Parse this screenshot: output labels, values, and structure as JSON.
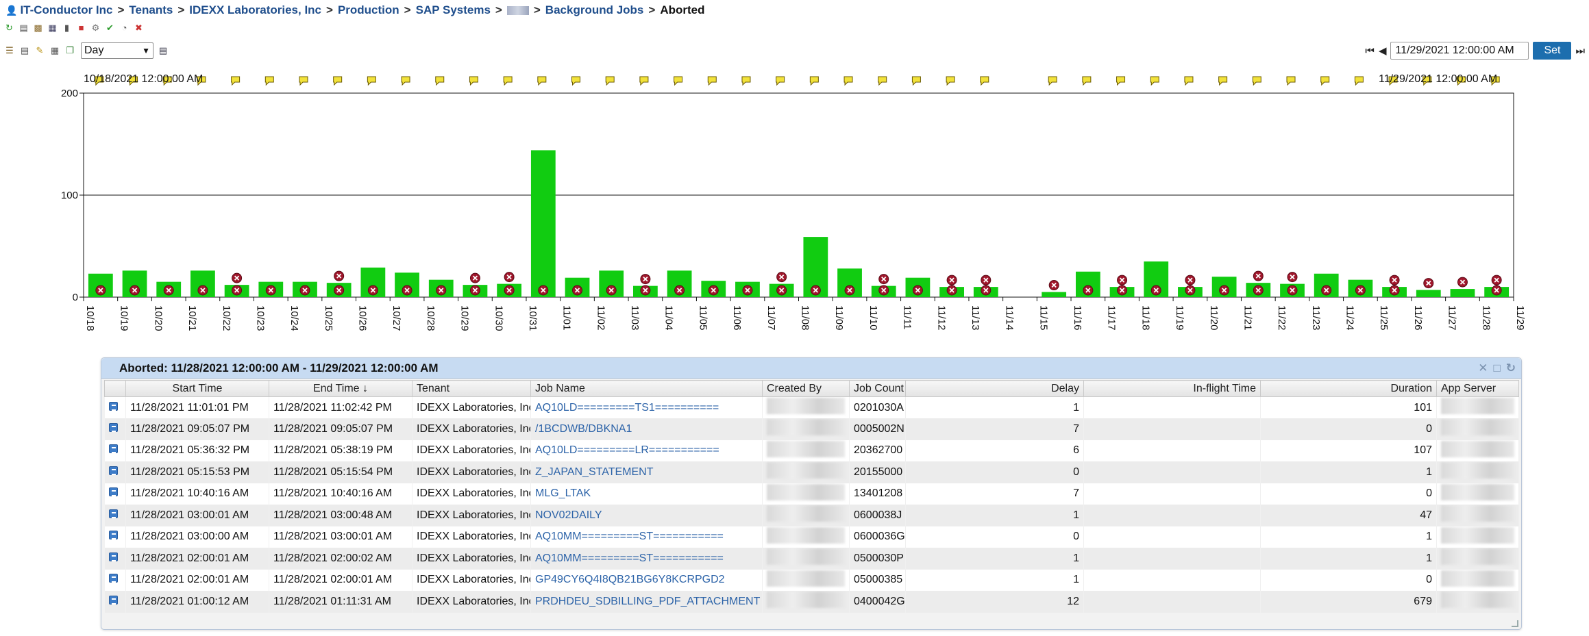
{
  "breadcrumb": {
    "items": [
      "IT-Conductor Inc",
      "Tenants",
      "IDEXX Laboratories, Inc",
      "Production",
      "SAP Systems"
    ],
    "after_system": "Background Jobs",
    "current": "Aborted",
    "separator": ">"
  },
  "controls": {
    "period": "Day",
    "date_value": "11/29/2021 12:00:00 AM",
    "set_label": "Set",
    "range_start_label": "10/18/2021 12:00:00 AM",
    "range_end_label": "11/29/2021 12:00:00 AM"
  },
  "chart_data": {
    "type": "bar",
    "categories": [
      "10/18",
      "10/19",
      "10/20",
      "10/21",
      "10/22",
      "10/23",
      "10/24",
      "10/25",
      "10/26",
      "10/27",
      "10/28",
      "10/29",
      "10/30",
      "10/31",
      "11/01",
      "11/02",
      "11/03",
      "11/04",
      "11/05",
      "11/06",
      "11/07",
      "11/08",
      "11/09",
      "11/10",
      "11/11",
      "11/12",
      "11/13",
      "11/14",
      "11/15",
      "11/16",
      "11/17",
      "11/18",
      "11/19",
      "11/20",
      "11/21",
      "11/22",
      "11/23",
      "11/24",
      "11/25",
      "11/26",
      "11/27",
      "11/28"
    ],
    "x_end_tick": "11/29",
    "values": [
      23,
      26,
      15,
      26,
      12,
      15,
      15,
      14,
      29,
      24,
      17,
      12,
      13,
      144,
      19,
      26,
      11,
      26,
      16,
      15,
      13,
      59,
      28,
      11,
      19,
      10,
      10,
      0,
      5,
      25,
      10,
      35,
      10,
      20,
      14,
      13,
      23,
      17,
      10,
      7,
      8,
      10
    ],
    "ylim": [
      0,
      200
    ],
    "yticks": [
      0,
      100,
      200
    ],
    "color": "#11cc11",
    "annotation_markers": "yellow flag above every day except 11/14; red error icon on each bar"
  },
  "table": {
    "title": "Aborted: 11/28/2021 12:00:00 AM - 11/29/2021 12:00:00 AM",
    "columns": [
      "Start Time",
      "End Time ↓",
      "Tenant",
      "Job Name",
      "Created By",
      "Job Count",
      "Delay",
      "In-flight Time",
      "Duration",
      "App Server"
    ],
    "rows": [
      {
        "start": "11/28/2021 11:01:01 PM",
        "end": "11/28/2021 11:02:42 PM",
        "tenant": "IDEXX Laboratories, Inc",
        "job": "AQ10LD=========TS1==========",
        "count": "0201030A",
        "delay": "1",
        "inflight": "",
        "duration": "101"
      },
      {
        "start": "11/28/2021 09:05:07 PM",
        "end": "11/28/2021 09:05:07 PM",
        "tenant": "IDEXX Laboratories, Inc",
        "job": "/1BCDWB/DBKNA1",
        "count": "0005002N",
        "delay": "7",
        "inflight": "",
        "duration": "0"
      },
      {
        "start": "11/28/2021 05:36:32 PM",
        "end": "11/28/2021 05:38:19 PM",
        "tenant": "IDEXX Laboratories, Inc",
        "job": "AQ10LD=========LR===========",
        "count": "20362700",
        "delay": "6",
        "inflight": "",
        "duration": "107"
      },
      {
        "start": "11/28/2021 05:15:53 PM",
        "end": "11/28/2021 05:15:54 PM",
        "tenant": "IDEXX Laboratories, Inc",
        "job": "Z_JAPAN_STATEMENT",
        "count": "20155000",
        "delay": "0",
        "inflight": "",
        "duration": "1"
      },
      {
        "start": "11/28/2021 10:40:16 AM",
        "end": "11/28/2021 10:40:16 AM",
        "tenant": "IDEXX Laboratories, Inc",
        "job": "MLG_LTAK",
        "count": "13401208",
        "delay": "7",
        "inflight": "",
        "duration": "0"
      },
      {
        "start": "11/28/2021 03:00:01 AM",
        "end": "11/28/2021 03:00:48 AM",
        "tenant": "IDEXX Laboratories, Inc",
        "job": "NOV02DAILY",
        "count": "0600038J",
        "delay": "1",
        "inflight": "",
        "duration": "47"
      },
      {
        "start": "11/28/2021 03:00:00 AM",
        "end": "11/28/2021 03:00:01 AM",
        "tenant": "IDEXX Laboratories, Inc",
        "job": "AQ10MM=========ST===========",
        "count": "0600036G",
        "delay": "0",
        "inflight": "",
        "duration": "1"
      },
      {
        "start": "11/28/2021 02:00:01 AM",
        "end": "11/28/2021 02:00:02 AM",
        "tenant": "IDEXX Laboratories, Inc",
        "job": "AQ10MM=========ST===========",
        "count": "0500030P",
        "delay": "1",
        "inflight": "",
        "duration": "1"
      },
      {
        "start": "11/28/2021 02:00:01 AM",
        "end": "11/28/2021 02:00:01 AM",
        "tenant": "IDEXX Laboratories, Inc",
        "job": "GP49CY6Q4I8QB21BG6Y8KCRPGD2",
        "count": "05000385",
        "delay": "1",
        "inflight": "",
        "duration": "0"
      },
      {
        "start": "11/28/2021 01:00:12 AM",
        "end": "11/28/2021 01:11:31 AM",
        "tenant": "IDEXX Laboratories, Inc",
        "job": "PRDHDEU_SDBILLING_PDF_ATTACHMENT",
        "count": "0400042G",
        "delay": "12",
        "inflight": "",
        "duration": "679"
      }
    ]
  },
  "icons": {
    "flag": "yellow-flag-icon",
    "error": "red-x-icon",
    "row": "job-icon"
  }
}
